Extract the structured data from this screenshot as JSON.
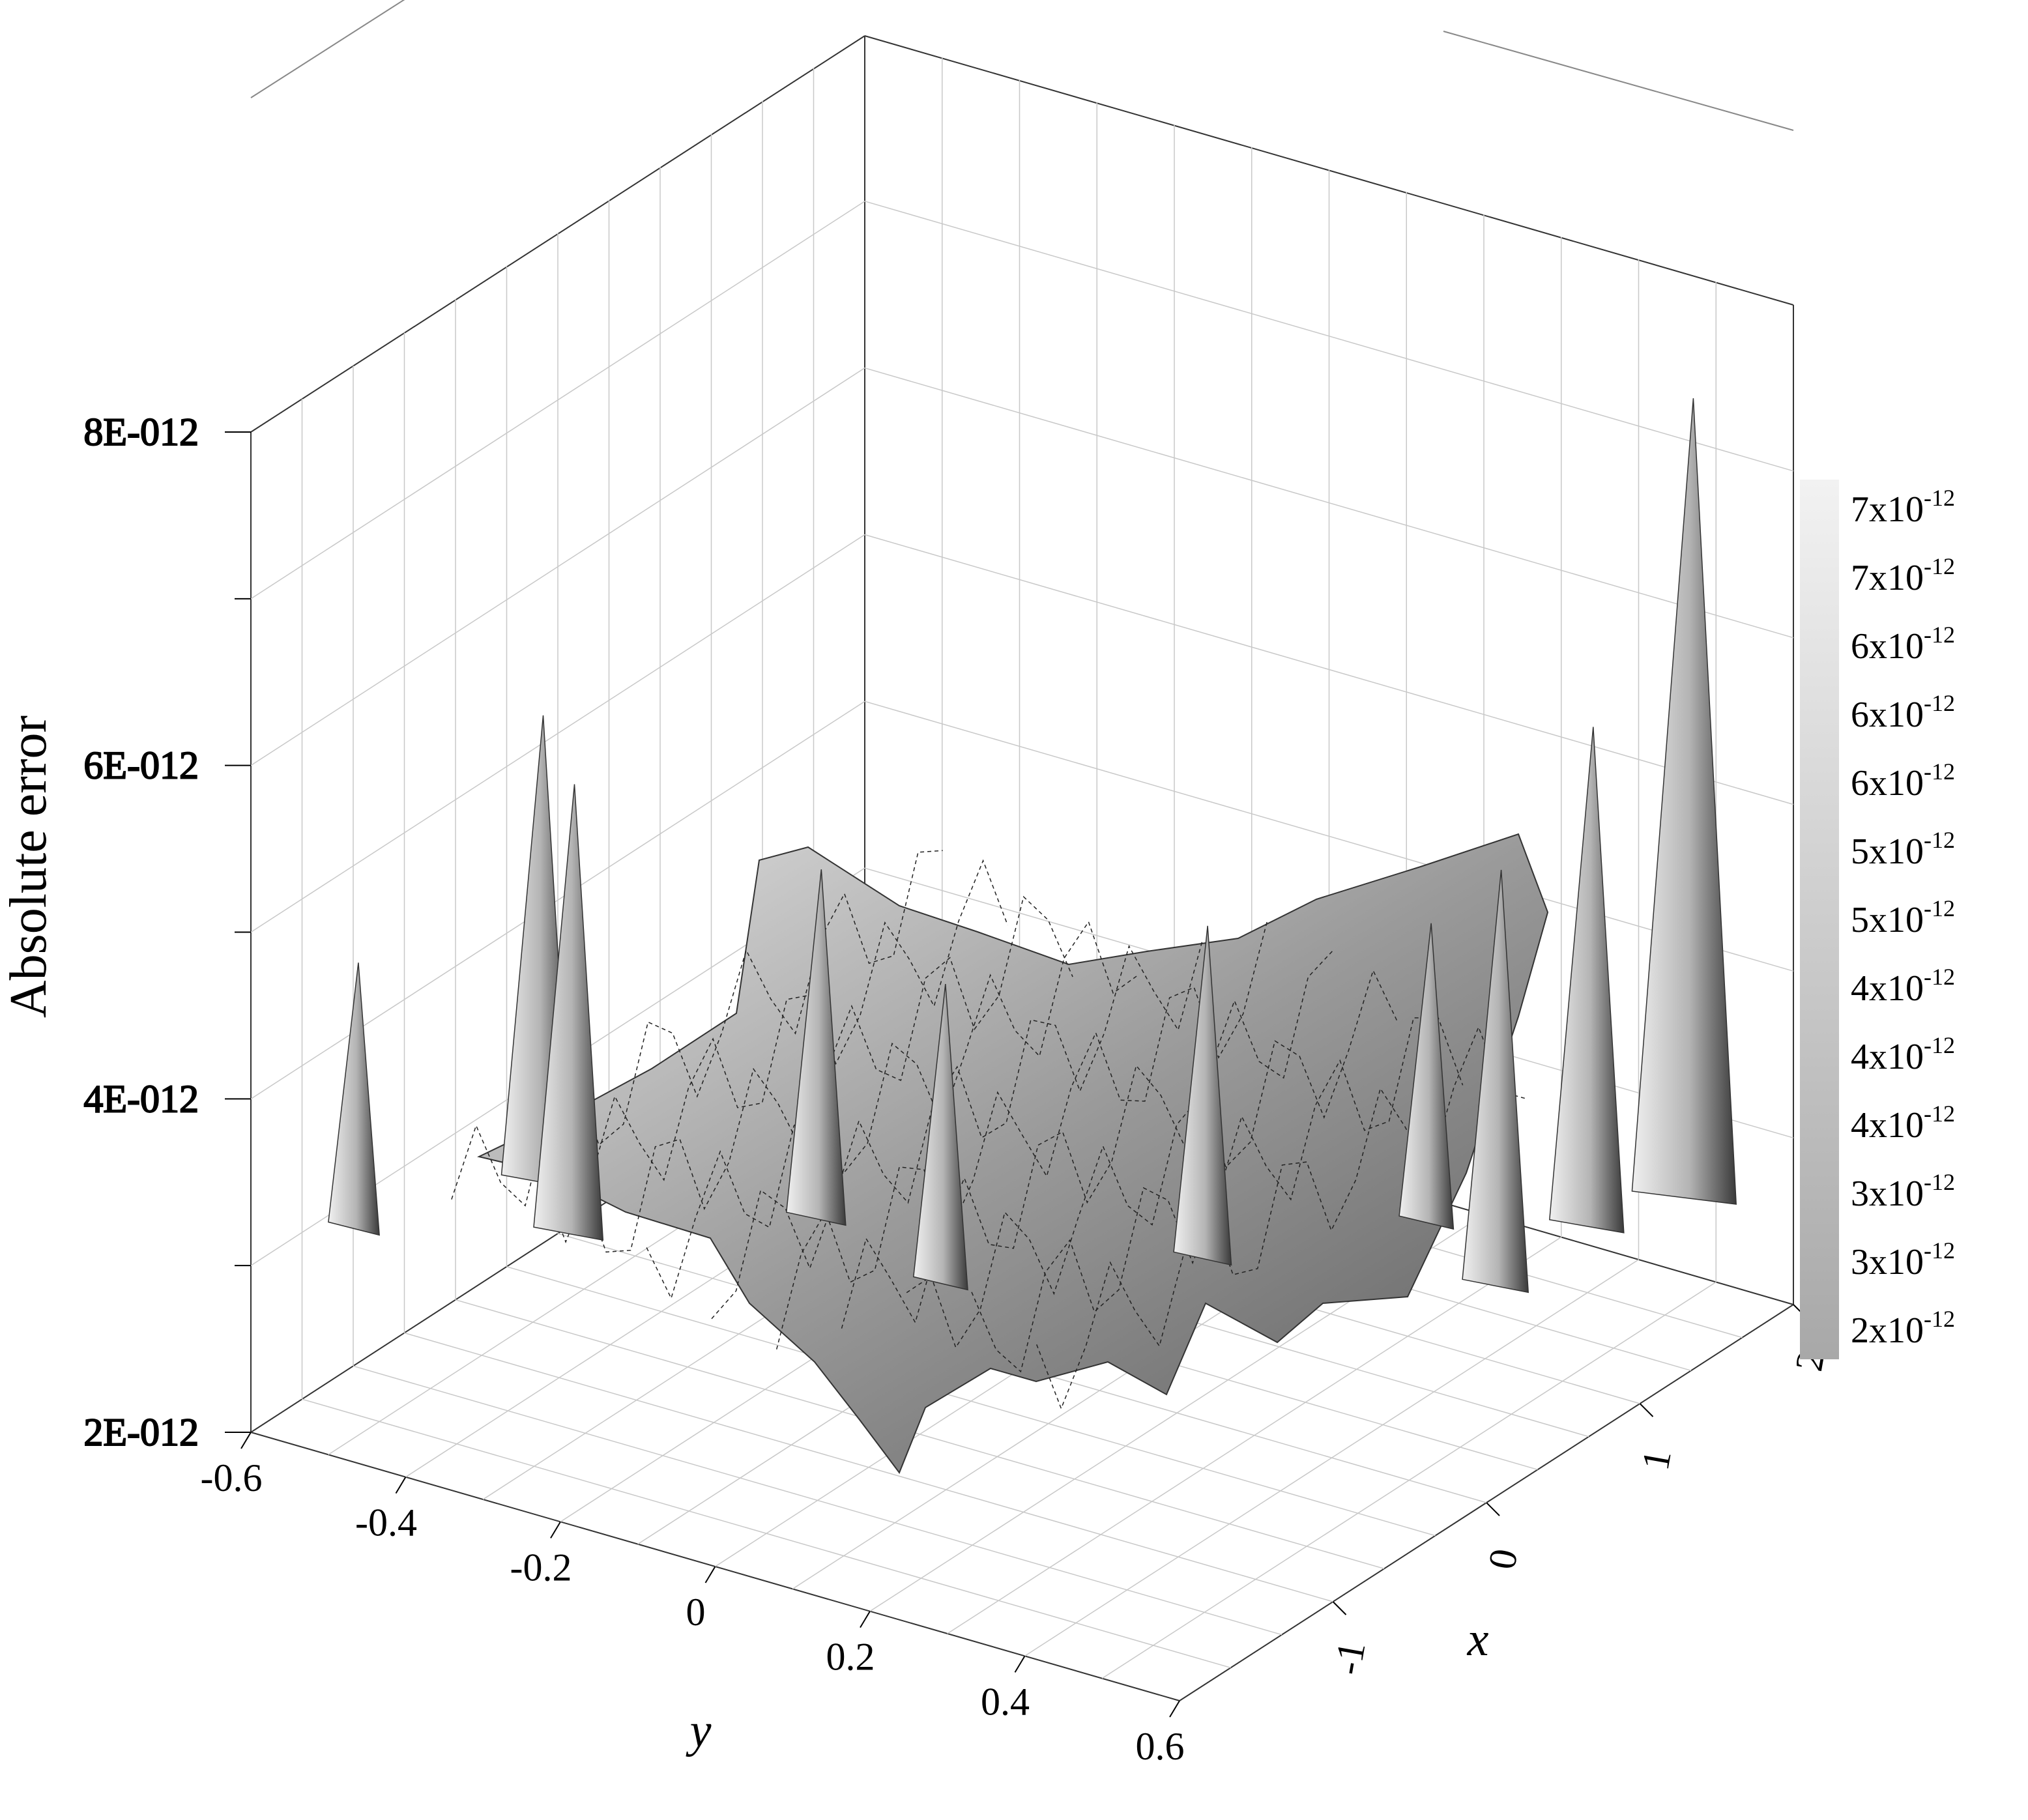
{
  "chart_data": {
    "type": "surface3d",
    "title": "",
    "zlabel": "Absolute error",
    "xlabel": "x",
    "ylabel": "y",
    "z_ticks": [
      "2E-012",
      "4E-012",
      "6E-012",
      "8E-012"
    ],
    "z_tick_values": [
      2e-12,
      4e-12,
      6e-12,
      8e-12
    ],
    "zlim": [
      2e-12,
      8e-12
    ],
    "x_ticks": [
      "-1",
      "0",
      "1",
      "2"
    ],
    "x_tick_values": [
      -1,
      0,
      1,
      2
    ],
    "xlim": [
      -2,
      2
    ],
    "y_ticks": [
      "-0.6",
      "-0.4",
      "-0.2",
      "0",
      "0.2",
      "0.4",
      "0.6"
    ],
    "y_tick_values": [
      -0.6,
      -0.4,
      -0.2,
      0,
      0.2,
      0.4,
      0.6
    ],
    "ylim": [
      -0.6,
      0.6
    ],
    "colorbar": {
      "labels": [
        "7x10",
        "7x10",
        "6x10",
        "6x10",
        "6x10",
        "5x10",
        "5x10",
        "4x10",
        "4x10",
        "4x10",
        "3x10",
        "3x10",
        "2x10"
      ],
      "exponent": "-12",
      "color_high": "#f2f2f2",
      "color_low": "#a8a8a8"
    },
    "colormap": "grayscale",
    "grid": true,
    "peaks": [
      {
        "x": 1.6,
        "y": 0.55,
        "z": 7.6e-12
      },
      {
        "x": 1.2,
        "y": 0.5,
        "z": 5.8e-12
      },
      {
        "x": 0.6,
        "y": 0.5,
        "z": 5.3e-12
      },
      {
        "x": -0.6,
        "y": -0.5,
        "z": 5.6e-12
      },
      {
        "x": -0.9,
        "y": -0.4,
        "z": 5.5e-12
      },
      {
        "x": -0.3,
        "y": -0.2,
        "z": 4.9e-12
      },
      {
        "x": 0.2,
        "y": 0.2,
        "z": 4.8e-12
      },
      {
        "x": -1.3,
        "y": -0.6,
        "z": 4.4e-12
      },
      {
        "x": -0.5,
        "y": 0.0,
        "z": 4.6e-12
      },
      {
        "x": 0.9,
        "y": 0.35,
        "z": 4.6e-12
      }
    ]
  }
}
